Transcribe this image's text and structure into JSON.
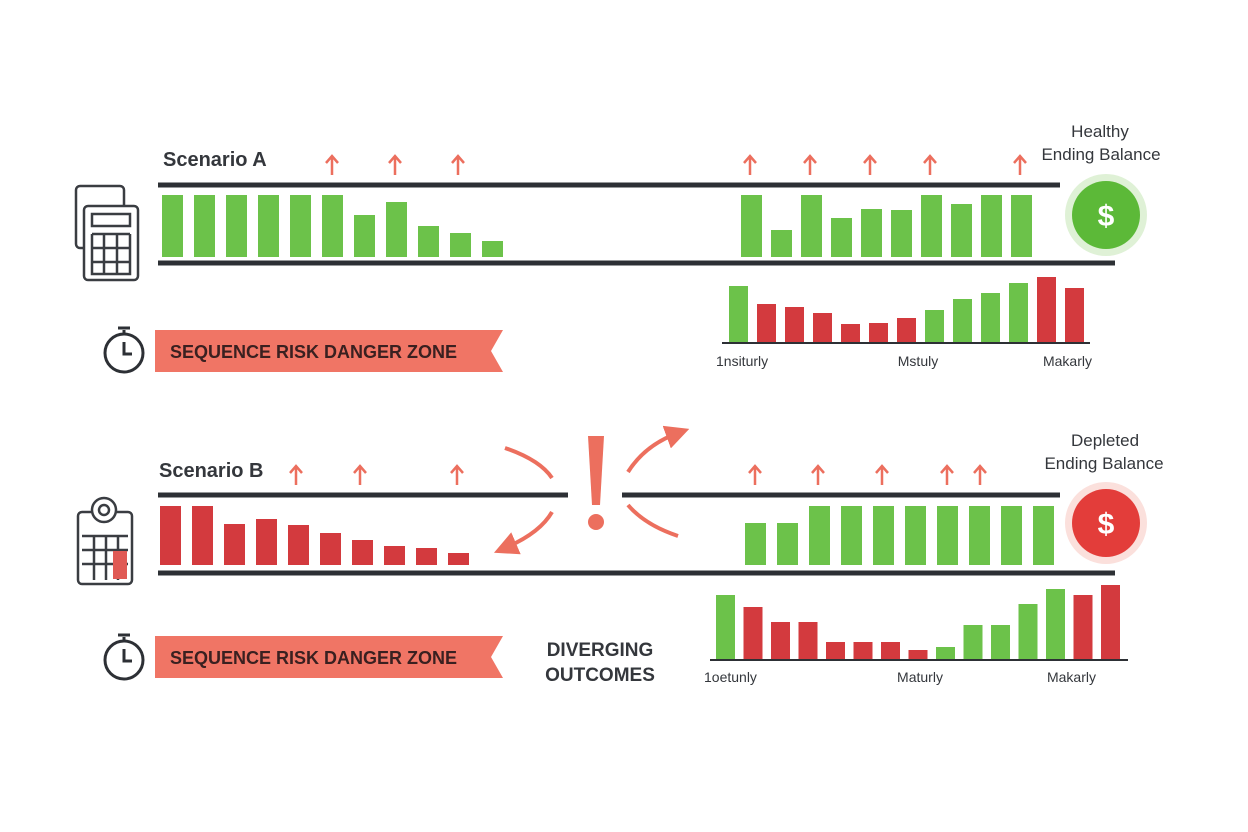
{
  "scenarios": [
    {
      "title": "Scenario A",
      "outcome": [
        "Healthy",
        "Ending Balance"
      ],
      "symbol": "$",
      "banner": "SEQUENCE RISK DANGER ZONE",
      "strip_left": {
        "color": "#6cc24a",
        "values": [
          62,
          62,
          62,
          62,
          62,
          62,
          42,
          55,
          31,
          24,
          16
        ]
      },
      "strip_right": {
        "color": "#6cc24a",
        "values": [
          62,
          27,
          62,
          39,
          48,
          47,
          62,
          53,
          62,
          62
        ]
      },
      "mini": {
        "values": [
          56,
          38,
          35,
          29,
          18,
          19,
          24,
          32,
          43,
          49,
          59,
          65,
          54
        ],
        "colors": [
          "#6cc24a",
          "#d33a3e",
          "#d33a3e",
          "#d33a3e",
          "#d33a3e",
          "#d33a3e",
          "#d33a3e",
          "#6cc24a",
          "#6cc24a",
          "#6cc24a",
          "#6cc24a",
          "#d33a3e",
          "#d33a3e"
        ],
        "labels": [
          "1nsiturly",
          "Mstuly",
          "Makarly"
        ]
      }
    },
    {
      "title": "Scenario B",
      "outcome": [
        "Depleted",
        "Ending Balance"
      ],
      "symbol": "$",
      "banner": "SEQUENCE RISK DANGER ZONE",
      "strip_left": {
        "color": "#d33a3e",
        "values": [
          59,
          59,
          41,
          46,
          40,
          32,
          25,
          19,
          17,
          12
        ]
      },
      "strip_right": {
        "color": "#6cc24a",
        "values": [
          42,
          42,
          59,
          59,
          59,
          59,
          59,
          59,
          59,
          59
        ]
      },
      "mini": {
        "values": [
          64,
          52,
          37,
          37,
          17,
          17,
          17,
          9,
          12,
          34,
          34,
          55,
          70,
          64,
          74
        ],
        "colors": [
          "#6cc24a",
          "#d33a3e",
          "#d33a3e",
          "#d33a3e",
          "#d33a3e",
          "#d33a3e",
          "#d33a3e",
          "#d33a3e",
          "#6cc24a",
          "#6cc24a",
          "#6cc24a",
          "#6cc24a",
          "#6cc24a",
          "#d33a3e",
          "#d33a3e"
        ],
        "labels": [
          "1oetunly",
          "Maturly",
          "Makarly"
        ]
      }
    }
  ],
  "center_label": [
    "DIVERGING",
    "OUTCOMES"
  ]
}
